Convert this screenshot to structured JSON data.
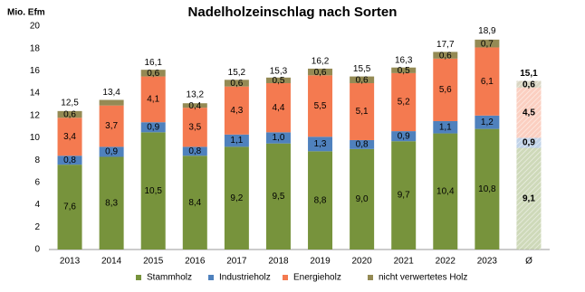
{
  "chart_data": {
    "type": "stacked-bar",
    "title": "Nadelholzeinschlag nach Sorten",
    "y_axis_label": "Mio. Efm",
    "categories": [
      "2013",
      "2014",
      "2015",
      "2016",
      "2017",
      "2018",
      "2019",
      "2020",
      "2021",
      "2022",
      "2023",
      "Ø"
    ],
    "hatched": [
      false,
      false,
      false,
      false,
      false,
      false,
      false,
      false,
      false,
      false,
      false,
      true
    ],
    "series": [
      {
        "name": "Stammholz",
        "color": "#77933c",
        "values": [
          7.6,
          8.3,
          10.5,
          8.4,
          9.2,
          9.5,
          8.8,
          9.0,
          9.7,
          10.4,
          10.8,
          9.1
        ],
        "value_labels": [
          "7,6",
          "8,3",
          "10,5",
          "8,4",
          "9,2",
          "9,5",
          "8,8",
          "9,0",
          "9,7",
          "10,4",
          "10,8",
          "9,1"
        ]
      },
      {
        "name": "Industrieholz",
        "color": "#4f81bd",
        "values": [
          0.8,
          0.9,
          0.9,
          0.8,
          1.1,
          1.0,
          1.3,
          0.8,
          0.9,
          1.1,
          1.2,
          0.9
        ],
        "value_labels": [
          "0,8",
          "0,9",
          "0,9",
          "0,8",
          "1,1",
          "1,0",
          "1,3",
          "0,8",
          "0,9",
          "1,1",
          "1,2",
          "0,9"
        ]
      },
      {
        "name": "Energieholz",
        "color": "#f47a50",
        "values": [
          3.4,
          3.7,
          4.1,
          3.5,
          4.3,
          4.4,
          5.5,
          5.1,
          5.2,
          5.6,
          6.1,
          4.5
        ],
        "value_labels": [
          "3,4",
          "3,7",
          "4,1",
          "3,5",
          "4,3",
          "4,4",
          "5,5",
          "5,1",
          "5,2",
          "5,6",
          "6,1",
          "4,5"
        ]
      },
      {
        "name": "nicht verwertetes Holz",
        "color": "#948a54",
        "values": [
          0.6,
          0.5,
          0.6,
          0.4,
          0.6,
          0.5,
          0.6,
          0.6,
          0.5,
          0.6,
          0.7,
          0.6
        ],
        "value_labels": [
          "0,6",
          null,
          "0,6",
          "0,4",
          "0,6",
          "0,5",
          "0,6",
          "0,6",
          "0,5",
          "0,6",
          "0,7",
          "0,6"
        ]
      }
    ],
    "totals": [
      12.5,
      13.4,
      16.1,
      13.2,
      15.2,
      15.3,
      16.2,
      15.5,
      16.3,
      17.7,
      18.9,
      15.1
    ],
    "totals_labels": [
      "12,5",
      "13,4",
      "16,1",
      "13,2",
      "15,2",
      "15,3",
      "16,2",
      "15,5",
      "16,3",
      "17,7",
      "18,9",
      "15,1"
    ],
    "ylim": [
      0,
      20
    ],
    "yticks": [
      0,
      2,
      4,
      6,
      8,
      10,
      12,
      14,
      16,
      18,
      20
    ],
    "grid": false,
    "legend": "bottom"
  }
}
